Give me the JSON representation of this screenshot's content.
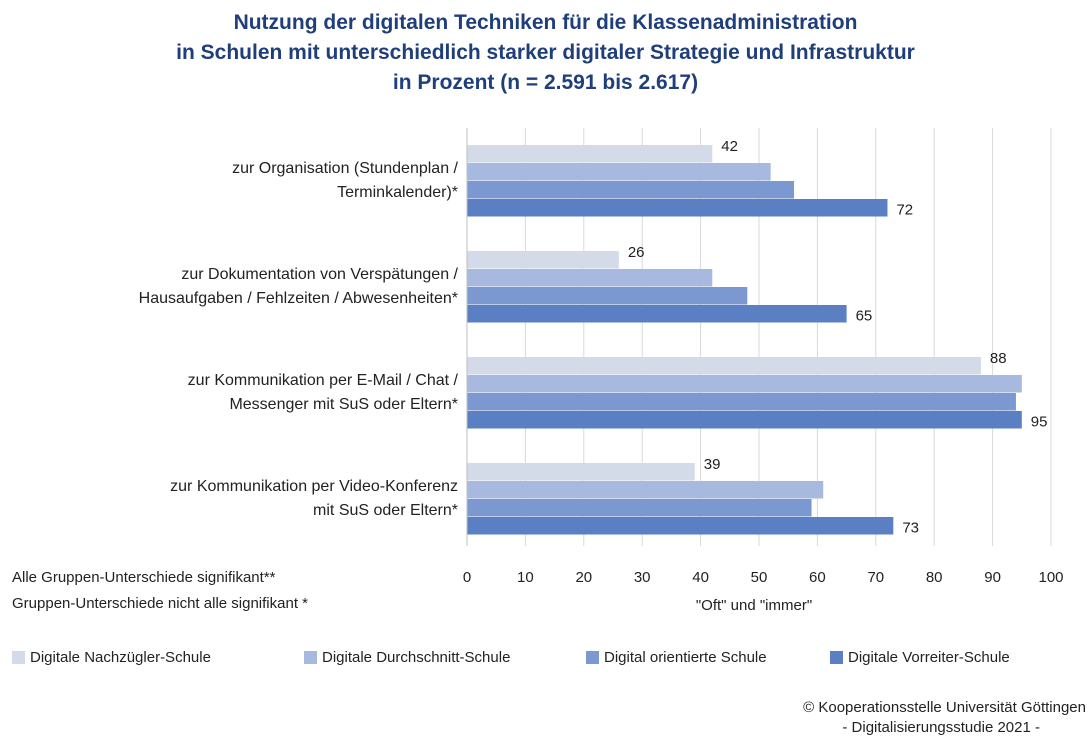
{
  "chart_data": {
    "type": "barh",
    "title": "Nutzung der digitalen Techniken für die Klassenadministration\nin Schulen mit unterschiedlich starker digitaler Strategie und Infrastruktur\nin Prozent (n =  2.591 bis 2.617)",
    "categories": [
      "zur Organisation (Stundenplan /\nTerminkalender)*",
      "zur Dokumentation von Verspätungen /\nHausaufgaben /  Fehlzeiten / Abwesenheiten*",
      "zur Kommunikation per E-Mail / Chat /\nMessenger mit SuS oder Eltern*",
      "zur Kommunikation per Video-Konferenz\nmit SuS oder Eltern*"
    ],
    "series": [
      {
        "name": "Digitale Nachzügler-Schule",
        "color": "#d3dbe8",
        "values": [
          42,
          26,
          88,
          39
        ],
        "data_labels": true
      },
      {
        "name": "Digitale Durchschnitt-Schule",
        "color": "#a7b9de",
        "values": [
          52,
          42,
          95,
          61
        ],
        "data_labels": false
      },
      {
        "name": "Digital orientierte Schule",
        "color": "#7b98d0",
        "values": [
          56,
          48,
          94,
          59
        ],
        "data_labels": false
      },
      {
        "name": "Digitale Vorreiter-Schule",
        "color": "#5b7fc3",
        "values": [
          72,
          65,
          95,
          73
        ],
        "data_labels": true
      }
    ],
    "xlabel": "\"Oft\" und \"immer\"",
    "xlim": [
      0,
      100
    ],
    "xticks": [
      0,
      10,
      20,
      30,
      40,
      50,
      60,
      70,
      80,
      90,
      100
    ],
    "grid": true,
    "notes": [
      "Alle Gruppen-Unterschiede signifikant**",
      "Gruppen-Unterschiede nicht alle signifikant *"
    ],
    "source": [
      "© Kooperationsstelle Universität Göttingen",
      "- Digitalisierungsstudie 2021 -"
    ],
    "legend": "bottom"
  }
}
